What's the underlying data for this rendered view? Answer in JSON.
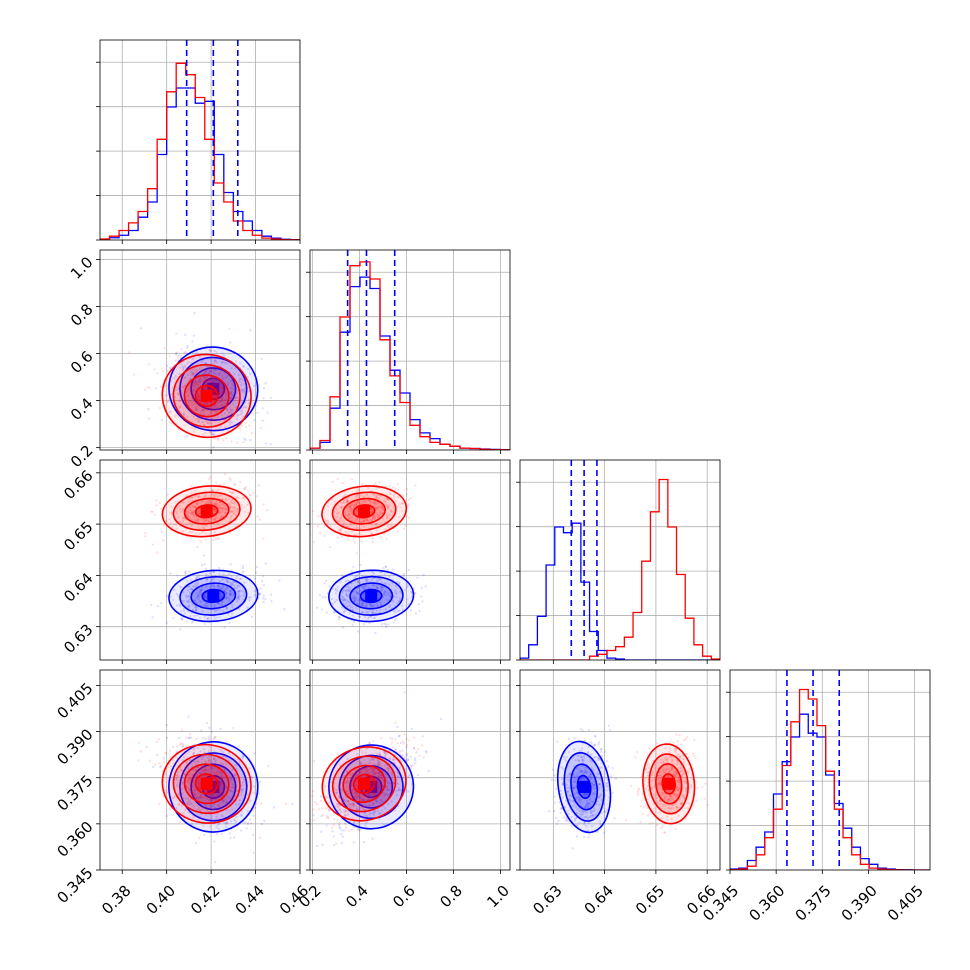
{
  "chart_data": {
    "type": "corner",
    "title": "",
    "grid": true,
    "colors": {
      "series_a": "#0000ff",
      "series_b": "#ff0000"
    },
    "parameters": [
      {
        "range": [
          0.37,
          0.46
        ],
        "ticks": [
          {
            "v": 0.38,
            "label": "0.38"
          },
          {
            "v": 0.4,
            "label": "0.40"
          },
          {
            "v": 0.42,
            "label": "0.42"
          },
          {
            "v": 0.44,
            "label": "0.44"
          },
          {
            "v": 0.46,
            "label": "0.46"
          }
        ]
      },
      {
        "range": [
          0.19,
          1.04
        ],
        "ticks": [
          {
            "v": 0.2,
            "label": "0.2"
          },
          {
            "v": 0.4,
            "label": "0.4"
          },
          {
            "v": 0.6,
            "label": "0.6"
          },
          {
            "v": 0.8,
            "label": "0.8"
          },
          {
            "v": 1.0,
            "label": "1.0"
          }
        ]
      },
      {
        "range": [
          0.6235,
          0.6625
        ],
        "ticks": [
          {
            "v": 0.63,
            "label": "0.63"
          },
          {
            "v": 0.64,
            "label": "0.64"
          },
          {
            "v": 0.65,
            "label": "0.65"
          },
          {
            "v": 0.66,
            "label": "0.66"
          }
        ]
      },
      {
        "range": [
          0.345,
          0.41
        ],
        "ticks": [
          {
            "v": 0.345,
            "label": "0.345"
          },
          {
            "v": 0.36,
            "label": "0.360"
          },
          {
            "v": 0.375,
            "label": "0.375"
          },
          {
            "v": 0.39,
            "label": "0.390"
          },
          {
            "v": 0.405,
            "label": "0.405"
          }
        ]
      }
    ],
    "series": [
      {
        "color": "#0000ff",
        "means": [
          0.421,
          0.45,
          0.636,
          0.372
        ],
        "sigmas": [
          0.01,
          0.09,
          0.0025,
          0.0075
        ],
        "quantiles": [
          [
            0.409,
            0.421,
            0.432
          ],
          [
            0.35,
            0.43,
            0.55
          ],
          [
            0.6335,
            0.636,
            0.6385
          ],
          [
            0.3635,
            0.372,
            0.3805
          ]
        ],
        "correlations": [
          [
            0,
            1,
            -0.25
          ],
          [
            0,
            3,
            -0.3
          ],
          [
            1,
            3,
            0.6
          ],
          [
            0,
            2,
            0.2
          ],
          [
            1,
            2,
            0.1
          ],
          [
            2,
            3,
            0.15
          ]
        ]
      },
      {
        "color": "#ff0000",
        "means": [
          0.418,
          0.42,
          0.6525,
          0.373
        ],
        "sigmas": [
          0.01,
          0.09,
          0.0025,
          0.0065
        ],
        "quantiles": [
          [
            0.409,
            0.421,
            0.432
          ],
          [
            0.35,
            0.43,
            0.55
          ],
          [
            0.6335,
            0.636,
            0.6385
          ],
          [
            0.3635,
            0.372,
            0.3805
          ]
        ],
        "correlations": [
          [
            0,
            1,
            -0.3
          ],
          [
            0,
            3,
            -0.3
          ],
          [
            1,
            3,
            0.6
          ],
          [
            0,
            2,
            0.3
          ],
          [
            1,
            2,
            0.3
          ],
          [
            2,
            3,
            0.1
          ]
        ]
      }
    ],
    "diagonal_histograms": [
      {
        "bins": 21,
        "series_counts": [
          [
            0.004,
            0.012,
            0.025,
            0.05,
            0.12,
            0.2,
            0.45,
            0.7,
            0.8,
            0.8,
            0.72,
            0.73,
            0.45,
            0.25,
            0.15,
            0.1,
            0.05,
            0.02,
            0.01,
            0.004,
            0.002
          ],
          [
            0.005,
            0.02,
            0.05,
            0.09,
            0.15,
            0.27,
            0.53,
            0.78,
            0.93,
            0.87,
            0.75,
            0.53,
            0.3,
            0.2,
            0.1,
            0.05,
            0.025,
            0.01,
            0.005,
            0.002,
            0.001
          ]
        ]
      },
      {
        "bins": 20,
        "series_counts": [
          [
            0.01,
            0.04,
            0.22,
            0.62,
            0.86,
            0.91,
            0.85,
            0.6,
            0.42,
            0.3,
            0.16,
            0.09,
            0.06,
            0.03,
            0.02,
            0.01,
            0.008,
            0.005,
            0.003,
            0.002
          ],
          [
            0.01,
            0.05,
            0.28,
            0.7,
            0.97,
            0.99,
            0.9,
            0.58,
            0.39,
            0.25,
            0.13,
            0.07,
            0.04,
            0.03,
            0.02,
            0.01,
            0.008,
            0.004,
            0.002,
            0.001
          ]
        ]
      },
      {
        "bins": 23,
        "series_counts": [
          [
            0.01,
            0.08,
            0.23,
            0.5,
            0.7,
            0.67,
            0.72,
            0.41,
            0.15,
            0.05,
            0.01,
            0.005,
            0,
            0,
            0,
            0,
            0,
            0,
            0,
            0,
            0,
            0,
            0
          ],
          [
            0,
            0,
            0,
            0,
            0,
            0,
            0,
            0,
            0.02,
            0.03,
            0.05,
            0.07,
            0.12,
            0.25,
            0.52,
            0.78,
            0.95,
            0.7,
            0.45,
            0.22,
            0.08,
            0.02,
            0.005
          ]
        ]
      },
      {
        "bins": 23,
        "series_counts": [
          [
            0.005,
            0.01,
            0.05,
            0.12,
            0.2,
            0.4,
            0.57,
            0.7,
            0.82,
            0.72,
            0.7,
            0.5,
            0.35,
            0.22,
            0.12,
            0.06,
            0.03,
            0.01,
            0.005,
            0.002,
            0.001,
            0,
            0
          ],
          [
            0.002,
            0.005,
            0.02,
            0.08,
            0.17,
            0.32,
            0.55,
            0.78,
            0.95,
            0.9,
            0.76,
            0.52,
            0.32,
            0.17,
            0.08,
            0.03,
            0.01,
            0.005,
            0.002,
            0.001,
            0,
            0,
            0
          ]
        ]
      }
    ],
    "contour_levels_sigma": [
      0.5,
      1.0,
      1.5,
      2.0
    ],
    "quantile_line_style": "dashed"
  }
}
